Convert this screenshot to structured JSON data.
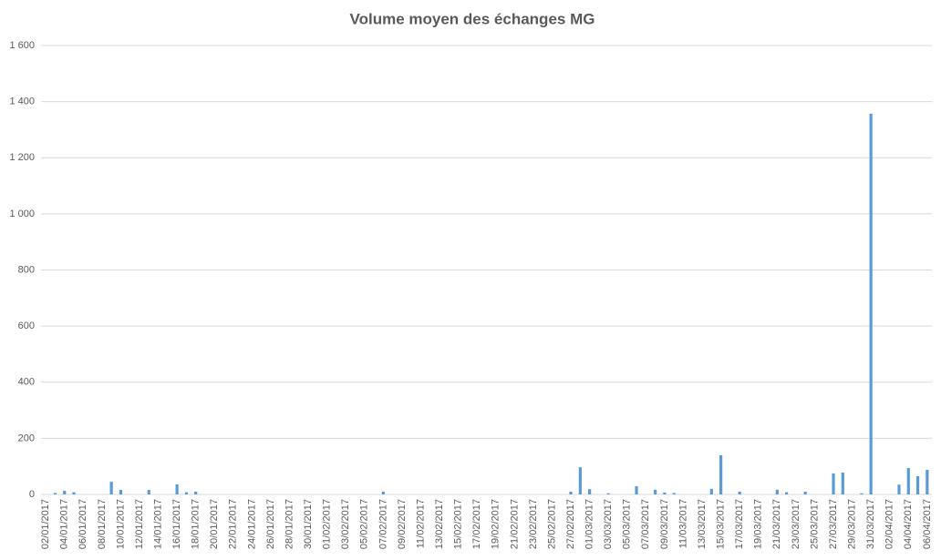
{
  "chart_data": {
    "type": "bar",
    "title": "Volume moyen des échanges MG",
    "categories": [
      "02/01/2017",
      null,
      "04/01/2017",
      null,
      "06/01/2017",
      null,
      "08/01/2017",
      null,
      "10/01/2017",
      null,
      "12/01/2017",
      null,
      "14/01/2017",
      null,
      "16/01/2017",
      null,
      "18/01/2017",
      null,
      "20/01/2017",
      null,
      "22/01/2017",
      null,
      "24/01/2017",
      null,
      "26/01/2017",
      null,
      "28/01/2017",
      null,
      "30/01/2017",
      null,
      "01/02/2017",
      null,
      "03/02/2017",
      null,
      "05/02/2017",
      null,
      "07/02/2017",
      null,
      "09/02/2017",
      null,
      "11/02/2017",
      null,
      "13/02/2017",
      null,
      "15/02/2017",
      null,
      "17/02/2017",
      null,
      "19/02/2017",
      null,
      "21/02/2017",
      null,
      "23/02/2017",
      null,
      "25/02/2017",
      null,
      "27/02/2017",
      null,
      "01/03/2017",
      null,
      "03/03/2017",
      null,
      "05/03/2017",
      null,
      "07/03/2017",
      null,
      "09/03/2017",
      null,
      "11/03/2017",
      null,
      "13/03/2017",
      null,
      "15/03/2017",
      null,
      "17/03/2017",
      null,
      "19/03/2017",
      null,
      "21/03/2017",
      null,
      "23/03/2017",
      null,
      "25/03/2017",
      null,
      "27/03/2017",
      null,
      "29/03/2017",
      null,
      "31/03/2017",
      null,
      "02/04/2017",
      null,
      "04/04/2017",
      null,
      "06/04/2017"
    ],
    "values": [
      0,
      5,
      13,
      8,
      0,
      0,
      0,
      45,
      16,
      0,
      0,
      16,
      0,
      0,
      36,
      8,
      10,
      0,
      0,
      0,
      0,
      0,
      0,
      0,
      0,
      0,
      0,
      0,
      0,
      0,
      0,
      0,
      0,
      0,
      0,
      0,
      10,
      0,
      0,
      0,
      0,
      0,
      0,
      0,
      0,
      0,
      0,
      0,
      0,
      0,
      0,
      0,
      0,
      0,
      0,
      0,
      10,
      97,
      19,
      0,
      4,
      0,
      0,
      29,
      0,
      17,
      7,
      5,
      0,
      0,
      0,
      20,
      140,
      0,
      10,
      0,
      0,
      0,
      17,
      8,
      0,
      10,
      0,
      0,
      75,
      78,
      0,
      4,
      1357,
      0,
      0,
      35,
      94,
      65,
      88
    ],
    "color": "#5b9bd5",
    "ylim": [
      0,
      1600
    ],
    "yticks": [
      0,
      200,
      400,
      600,
      800,
      {
        "value": 1000,
        "label": "1 000"
      },
      {
        "value": 1200,
        "label": "1 200"
      },
      {
        "value": 1400,
        "label": "1 400"
      },
      {
        "value": 1600,
        "label": "1 600"
      }
    ],
    "grid": true
  }
}
